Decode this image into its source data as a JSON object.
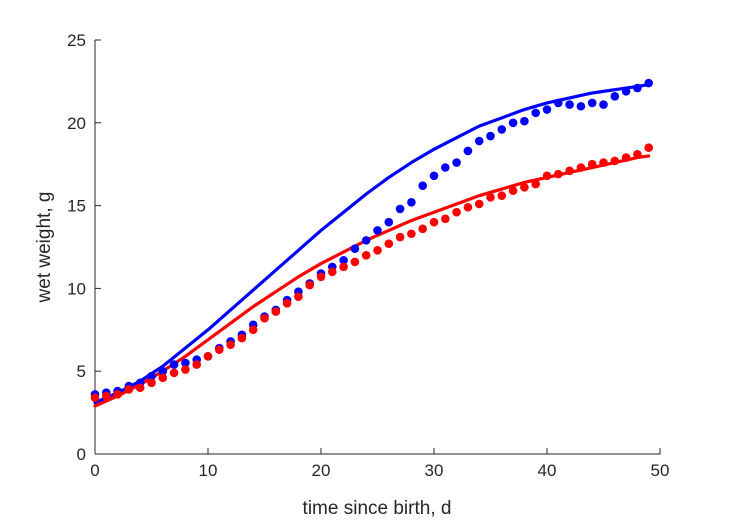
{
  "chart_data": {
    "type": "scatter",
    "title": "",
    "xlabel": "time since birth, d",
    "ylabel": "wet weight, g",
    "xlim": [
      0,
      50
    ],
    "ylim": [
      0,
      25
    ],
    "xticks": [
      "0",
      "10",
      "20",
      "30",
      "40",
      "50"
    ],
    "yticks": [
      "0",
      "5",
      "10",
      "15",
      "20",
      "25"
    ],
    "grid": false,
    "legend": "none",
    "series": [
      {
        "kind": "points",
        "color": "#0000ff",
        "x": [
          0,
          1,
          2,
          3,
          4,
          5,
          6,
          7,
          8,
          9,
          10,
          11,
          12,
          13,
          14,
          15,
          16,
          17,
          18,
          19,
          20,
          21,
          22,
          23,
          24,
          25,
          26,
          27,
          28,
          29,
          30,
          31,
          32,
          33,
          34,
          35,
          36,
          37,
          38,
          39,
          40,
          41,
          42,
          43,
          44,
          45,
          46,
          47,
          48,
          49
        ],
        "y": [
          3.6,
          3.7,
          3.8,
          4.1,
          4.3,
          4.7,
          5.0,
          5.4,
          5.5,
          5.7,
          5.9,
          6.4,
          6.8,
          7.2,
          7.8,
          8.3,
          8.7,
          9.3,
          9.8,
          10.3,
          10.9,
          11.3,
          11.7,
          12.4,
          12.9,
          13.5,
          14.0,
          14.8,
          15.2,
          16.2,
          16.8,
          17.3,
          17.6,
          18.3,
          18.9,
          19.2,
          19.6,
          20.0,
          20.1,
          20.6,
          20.8,
          21.2,
          21.1,
          21.0,
          21.2,
          21.1,
          21.6,
          21.9,
          22.1,
          22.4
        ]
      },
      {
        "kind": "points",
        "color": "#ff0000",
        "x": [
          0,
          1,
          2,
          3,
          4,
          5,
          6,
          7,
          8,
          9,
          10,
          11,
          12,
          13,
          14,
          15,
          16,
          17,
          18,
          19,
          20,
          21,
          22,
          23,
          24,
          25,
          26,
          27,
          28,
          29,
          30,
          31,
          32,
          33,
          34,
          35,
          36,
          37,
          38,
          39,
          40,
          41,
          42,
          43,
          44,
          45,
          46,
          47,
          48,
          49
        ],
        "y": [
          3.4,
          3.5,
          3.6,
          3.9,
          4.0,
          4.3,
          4.6,
          4.9,
          5.1,
          5.4,
          5.9,
          6.3,
          6.6,
          7.0,
          7.5,
          8.2,
          8.6,
          9.1,
          9.5,
          10.2,
          10.7,
          11.0,
          11.3,
          11.6,
          12.0,
          12.3,
          12.7,
          13.1,
          13.3,
          13.6,
          14.0,
          14.2,
          14.6,
          14.9,
          15.1,
          15.5,
          15.6,
          15.9,
          16.1,
          16.3,
          16.8,
          16.9,
          17.1,
          17.3,
          17.5,
          17.6,
          17.7,
          17.9,
          18.1,
          18.5
        ]
      },
      {
        "kind": "line",
        "color": "#0000ff",
        "x": [
          0,
          2,
          4,
          6,
          8,
          10,
          12,
          14,
          16,
          18,
          20,
          22,
          24,
          26,
          28,
          30,
          32,
          34,
          36,
          38,
          40,
          42,
          44,
          46,
          48,
          49
        ],
        "y": [
          3.1,
          3.7,
          4.4,
          5.3,
          6.4,
          7.5,
          8.7,
          9.9,
          11.1,
          12.3,
          13.5,
          14.6,
          15.7,
          16.7,
          17.6,
          18.4,
          19.1,
          19.8,
          20.3,
          20.8,
          21.2,
          21.5,
          21.8,
          22.0,
          22.2,
          22.3
        ]
      },
      {
        "kind": "line",
        "color": "#ff0000",
        "x": [
          0,
          2,
          4,
          6,
          8,
          10,
          12,
          14,
          16,
          18,
          20,
          22,
          24,
          26,
          28,
          30,
          32,
          34,
          36,
          38,
          40,
          42,
          44,
          46,
          48,
          49
        ],
        "y": [
          2.9,
          3.5,
          4.2,
          5.0,
          5.9,
          6.9,
          7.9,
          8.9,
          9.8,
          10.7,
          11.5,
          12.2,
          12.9,
          13.5,
          14.1,
          14.6,
          15.1,
          15.6,
          16.0,
          16.4,
          16.7,
          17.0,
          17.3,
          17.6,
          17.9,
          18.0
        ]
      }
    ]
  }
}
